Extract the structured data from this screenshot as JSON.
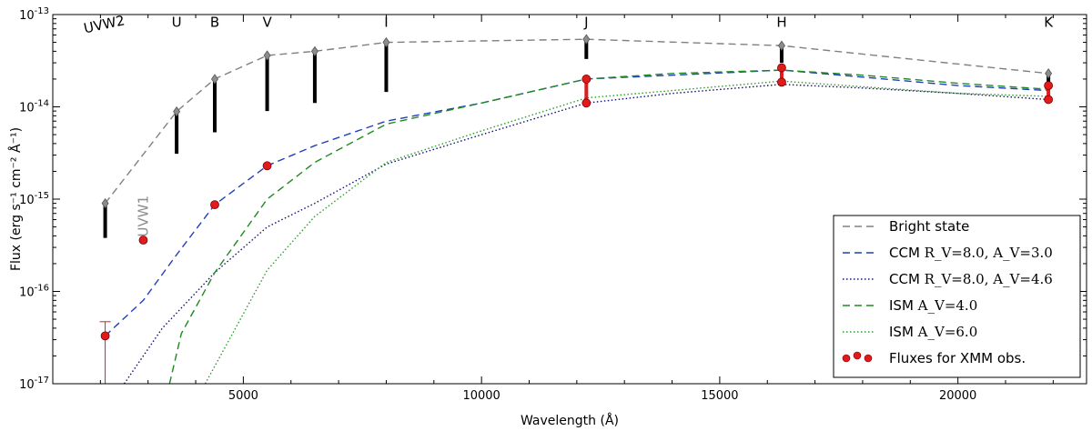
{
  "chart_data": {
    "type": "line",
    "xlabel": "Wavelength (Å)",
    "ylabel": "Flux (erg s⁻¹ cm⁻² Å⁻¹)",
    "xlim": [
      1000,
      22700
    ],
    "ylim": [
      1e-17,
      1e-13
    ],
    "yscale": "log",
    "x_ticks": [
      5000,
      10000,
      15000,
      20000
    ],
    "x_tick_labels": [
      "5000",
      "10000",
      "15000",
      "20000"
    ],
    "y_ticks": [
      1e-17,
      1e-16,
      1e-15,
      1e-14,
      1e-13
    ],
    "y_tick_labels": [
      {
        "base": "10",
        "exp": "-17"
      },
      {
        "base": "10",
        "exp": "-16"
      },
      {
        "base": "10",
        "exp": "-15"
      },
      {
        "base": "10",
        "exp": "-14"
      },
      {
        "base": "10",
        "exp": "-13"
      }
    ],
    "grid": false,
    "legend_position": "bottom-right",
    "band_labels": [
      {
        "text": "UVW2",
        "x": 2100,
        "y": 7e-14
      },
      {
        "text": "U",
        "x": 3600,
        "y": 7.4e-14
      },
      {
        "text": "B",
        "x": 4400,
        "y": 7.4e-14
      },
      {
        "text": "V",
        "x": 5500,
        "y": 7.4e-14
      },
      {
        "text": "I",
        "x": 8000,
        "y": 7.4e-14
      },
      {
        "text": "J",
        "x": 12200,
        "y": 7.4e-14
      },
      {
        "text": "H",
        "x": 16300,
        "y": 7.4e-14
      },
      {
        "text": "K",
        "x": 21900,
        "y": 7.4e-14
      }
    ],
    "uvw1_label": {
      "text": "UVW1",
      "x": 2900,
      "y": 3.9e-16
    },
    "series": [
      {
        "name": "Bright state",
        "style": "dashed",
        "color": "#808080",
        "marker": "diamond",
        "x": [
          2100,
          3600,
          4400,
          5500,
          6500,
          8000,
          12200,
          16300,
          21900
        ],
        "y": [
          9e-16,
          8.9e-15,
          2e-14,
          3.6e-14,
          4e-14,
          5e-14,
          5.4e-14,
          4.6e-14,
          2.3e-14
        ]
      },
      {
        "name": "CCM R_V=8.0, A_V=3.0",
        "style": "dashed",
        "color": "#1f3fbf",
        "x": [
          2100,
          2900,
          3600,
          4400,
          5500,
          6500,
          8000,
          10000,
          12200,
          14000,
          16300,
          18000,
          20000,
          21900
        ],
        "y": [
          3.3e-17,
          8e-17,
          2.5e-16,
          8.7e-16,
          2.3e-15,
          3.8e-15,
          7e-15,
          1.1e-14,
          2e-14,
          2.2e-14,
          2.5e-14,
          2.1e-14,
          1.7e-14,
          1.5e-14
        ]
      },
      {
        "name": "CCM R_V=8.0, A_V=4.6",
        "style": "dotted",
        "color": "#101070",
        "x": [
          2500,
          3300,
          4400,
          5500,
          6500,
          8000,
          10000,
          12200,
          14000,
          16300,
          18000,
          20000,
          21900
        ],
        "y": [
          1e-17,
          4e-17,
          1.6e-16,
          5e-16,
          9e-16,
          2.4e-15,
          5e-15,
          1.1e-14,
          1.4e-14,
          1.75e-14,
          1.6e-14,
          1.4e-14,
          1.2e-14
        ]
      },
      {
        "name": "ISM A_V=4.0",
        "style": "dashed",
        "color": "#1e8a1e",
        "x": [
          3450,
          3700,
          4400,
          5500,
          6500,
          8000,
          10000,
          12200,
          14000,
          16300,
          18000,
          20000,
          21900
        ],
        "y": [
          1e-17,
          3.5e-17,
          1.6e-16,
          1e-15,
          2.5e-15,
          6.5e-15,
          1.1e-14,
          2e-14,
          2.3e-14,
          2.5e-14,
          2.2e-14,
          1.8e-14,
          1.55e-14
        ]
      },
      {
        "name": "ISM A_V=6.0",
        "style": "dotted",
        "color": "#2aa02a",
        "x": [
          4200,
          5500,
          6500,
          8000,
          10000,
          12200,
          14000,
          16300,
          18000,
          20000,
          21900
        ],
        "y": [
          1e-17,
          1.7e-16,
          6.5e-16,
          2.5e-15,
          5.5e-15,
          1.25e-14,
          1.5e-14,
          1.9e-14,
          1.65e-14,
          1.4e-14,
          1.3e-14
        ]
      }
    ],
    "black_bars": [
      {
        "x": 2100,
        "y_low": 3.8e-16,
        "y_high": 9e-16
      },
      {
        "x": 3600,
        "y_low": 3.1e-15,
        "y_high": 8.9e-15
      },
      {
        "x": 4400,
        "y_low": 5.3e-15,
        "y_high": 2e-14
      },
      {
        "x": 5500,
        "y_low": 9e-15,
        "y_high": 3.6e-14
      },
      {
        "x": 6500,
        "y_low": 1.1e-14,
        "y_high": 4e-14
      },
      {
        "x": 8000,
        "y_low": 1.45e-14,
        "y_high": 5e-14
      },
      {
        "x": 12200,
        "y_low": 3.3e-14,
        "y_high": 5.4e-14
      },
      {
        "x": 16300,
        "y_low": 3e-14,
        "y_high": 4.6e-14
      },
      {
        "x": 21900,
        "y_low": 1.7e-14,
        "y_high": 2.3e-14
      }
    ],
    "xmm_points": {
      "name": "Fluxes for XMM obs.",
      "color": "#e31a1c",
      "x": [
        2100,
        2900,
        4400,
        5500,
        12200,
        12200,
        16300,
        16300,
        21900,
        21900
      ],
      "y": [
        3.3e-17,
        3.6e-16,
        8.7e-16,
        2.3e-15,
        2e-14,
        1.1e-14,
        2.65e-14,
        1.85e-14,
        1.7e-14,
        1.2e-14
      ]
    },
    "xmm_error": {
      "x": 2100,
      "y_low": 1e-17,
      "y_high": 4.7e-17
    },
    "red_bars": [
      {
        "x": 12200,
        "y_low": 1.1e-14,
        "y_high": 2e-14
      },
      {
        "x": 16300,
        "y_low": 1.85e-14,
        "y_high": 2.65e-14
      },
      {
        "x": 21900,
        "y_low": 1.2e-14,
        "y_high": 1.7e-14
      }
    ],
    "legend": [
      {
        "label": "Bright state",
        "style": "dashed",
        "color": "#808080"
      },
      {
        "label_prefix": "CCM",
        "math": "R_V=8.0, A_V=3.0",
        "style": "dashed",
        "color": "#1f3fbf"
      },
      {
        "label_prefix": "CCM",
        "math": "R_V=8.0, A_V=4.6",
        "style": "dotted",
        "color": "#101070"
      },
      {
        "label_prefix": "ISM",
        "math": "A_V=4.0",
        "style": "dashed",
        "color": "#1e8a1e"
      },
      {
        "label_prefix": "ISM",
        "math": "A_V=6.0",
        "style": "dotted",
        "color": "#2aa02a"
      },
      {
        "label": "Fluxes for XMM obs.",
        "style": "markers",
        "color": "#e31a1c"
      }
    ]
  }
}
